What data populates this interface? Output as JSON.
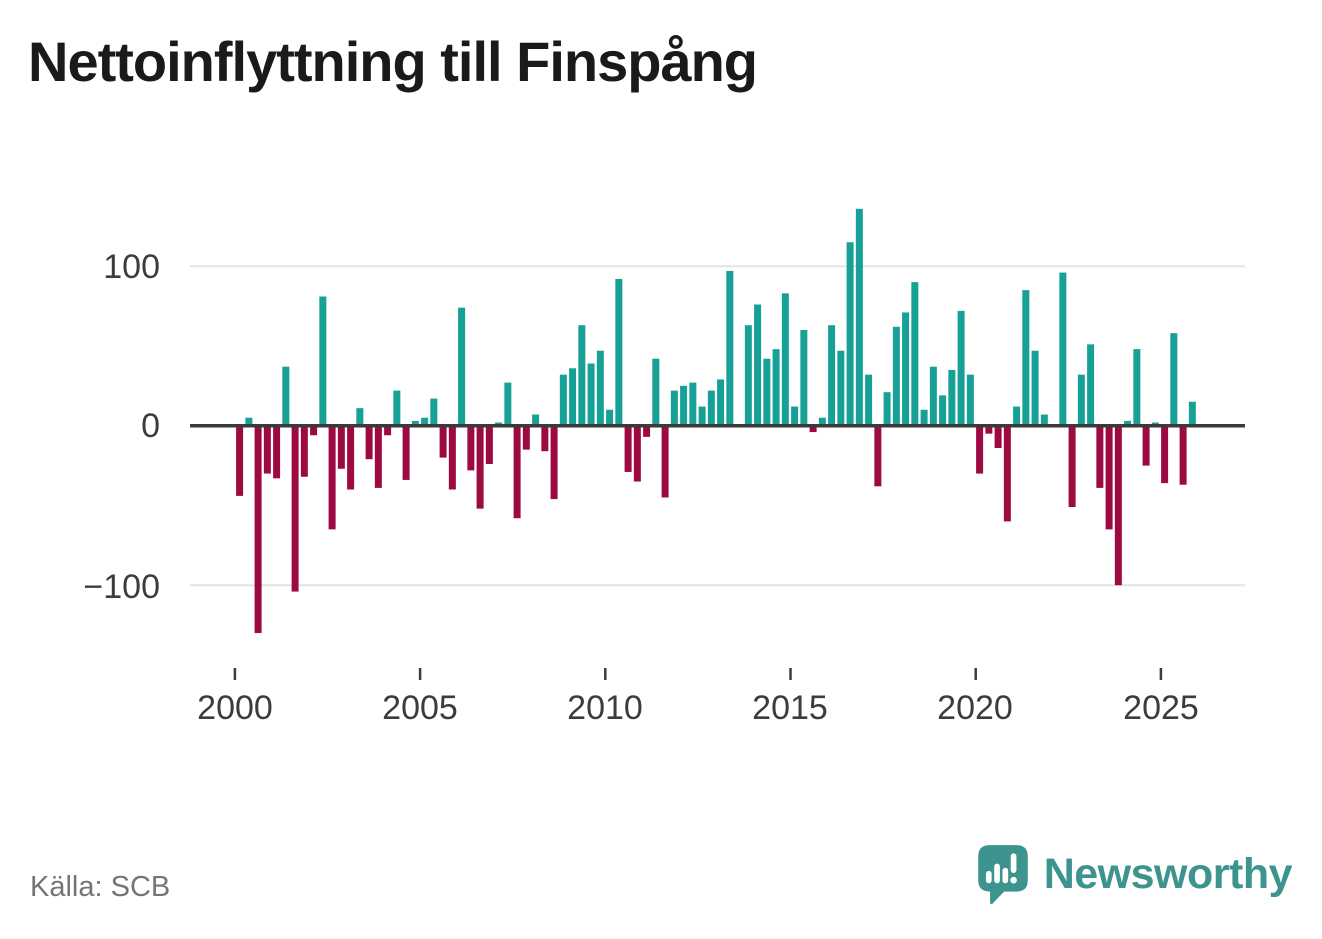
{
  "title": {
    "text": "Nettoinflyttning till Finspång",
    "color": "#1a1a1a"
  },
  "footer": {
    "source_label": "Källa: SCB",
    "source_color": "#757575"
  },
  "brand": {
    "wordmark": "Newsworthy",
    "color": "#3d938d",
    "icon": "newsworthy-speech-bubble-chart-icon"
  },
  "chart_data": {
    "type": "bar",
    "title": "Nettoinflyttning till Finspång",
    "frequency": "quarterly",
    "period_start": "2000Q1",
    "period_end": "2025Q4",
    "x_tick_labels": [
      "2000",
      "2005",
      "2010",
      "2015",
      "2020",
      "2025"
    ],
    "y_tick_labels": [
      "100",
      "0",
      "−100"
    ],
    "y_tick_values": [
      100,
      0,
      -100
    ],
    "ylim": [
      -150,
      155
    ],
    "grid": "horizontal",
    "legend": "none",
    "positive_color": "#16a096",
    "negative_color": "#9d0a41",
    "values_by_year": [
      {
        "year": 2000,
        "q": [
          -44,
          5,
          -130,
          -30
        ]
      },
      {
        "year": 2001,
        "q": [
          -33,
          37,
          -104,
          -32
        ]
      },
      {
        "year": 2002,
        "q": [
          -6,
          81,
          -65,
          -27
        ]
      },
      {
        "year": 2003,
        "q": [
          -40,
          11,
          -21,
          -39
        ]
      },
      {
        "year": 2004,
        "q": [
          -6,
          22,
          -34,
          3
        ]
      },
      {
        "year": 2005,
        "q": [
          5,
          17,
          -20,
          -40
        ]
      },
      {
        "year": 2006,
        "q": [
          74,
          -28,
          -52,
          -24
        ]
      },
      {
        "year": 2007,
        "q": [
          2,
          27,
          -58,
          -15
        ]
      },
      {
        "year": 2008,
        "q": [
          7,
          -16,
          -46,
          32
        ]
      },
      {
        "year": 2009,
        "q": [
          36,
          63,
          39,
          47
        ]
      },
      {
        "year": 2010,
        "q": [
          10,
          92,
          -29,
          -35
        ]
      },
      {
        "year": 2011,
        "q": [
          -7,
          42,
          -45,
          22
        ]
      },
      {
        "year": 2012,
        "q": [
          25,
          27,
          12,
          22
        ]
      },
      {
        "year": 2013,
        "q": [
          29,
          97,
          0,
          63
        ]
      },
      {
        "year": 2014,
        "q": [
          76,
          42,
          48,
          83
        ]
      },
      {
        "year": 2015,
        "q": [
          12,
          60,
          -4,
          5
        ]
      },
      {
        "year": 2016,
        "q": [
          63,
          47,
          115,
          136
        ]
      },
      {
        "year": 2017,
        "q": [
          32,
          -38,
          21,
          62
        ]
      },
      {
        "year": 2018,
        "q": [
          71,
          90,
          10,
          37
        ]
      },
      {
        "year": 2019,
        "q": [
          19,
          35,
          72,
          32
        ]
      },
      {
        "year": 2020,
        "q": [
          -30,
          -5,
          -14,
          -60
        ]
      },
      {
        "year": 2021,
        "q": [
          12,
          85,
          47,
          7
        ]
      },
      {
        "year": 2022,
        "q": [
          0,
          96,
          -51,
          32
        ]
      },
      {
        "year": 2023,
        "q": [
          51,
          -39,
          -65,
          -100
        ]
      },
      {
        "year": 2024,
        "q": [
          3,
          48,
          -25,
          2
        ]
      },
      {
        "year": 2025,
        "q": [
          -36,
          58,
          -37,
          15
        ]
      }
    ]
  }
}
